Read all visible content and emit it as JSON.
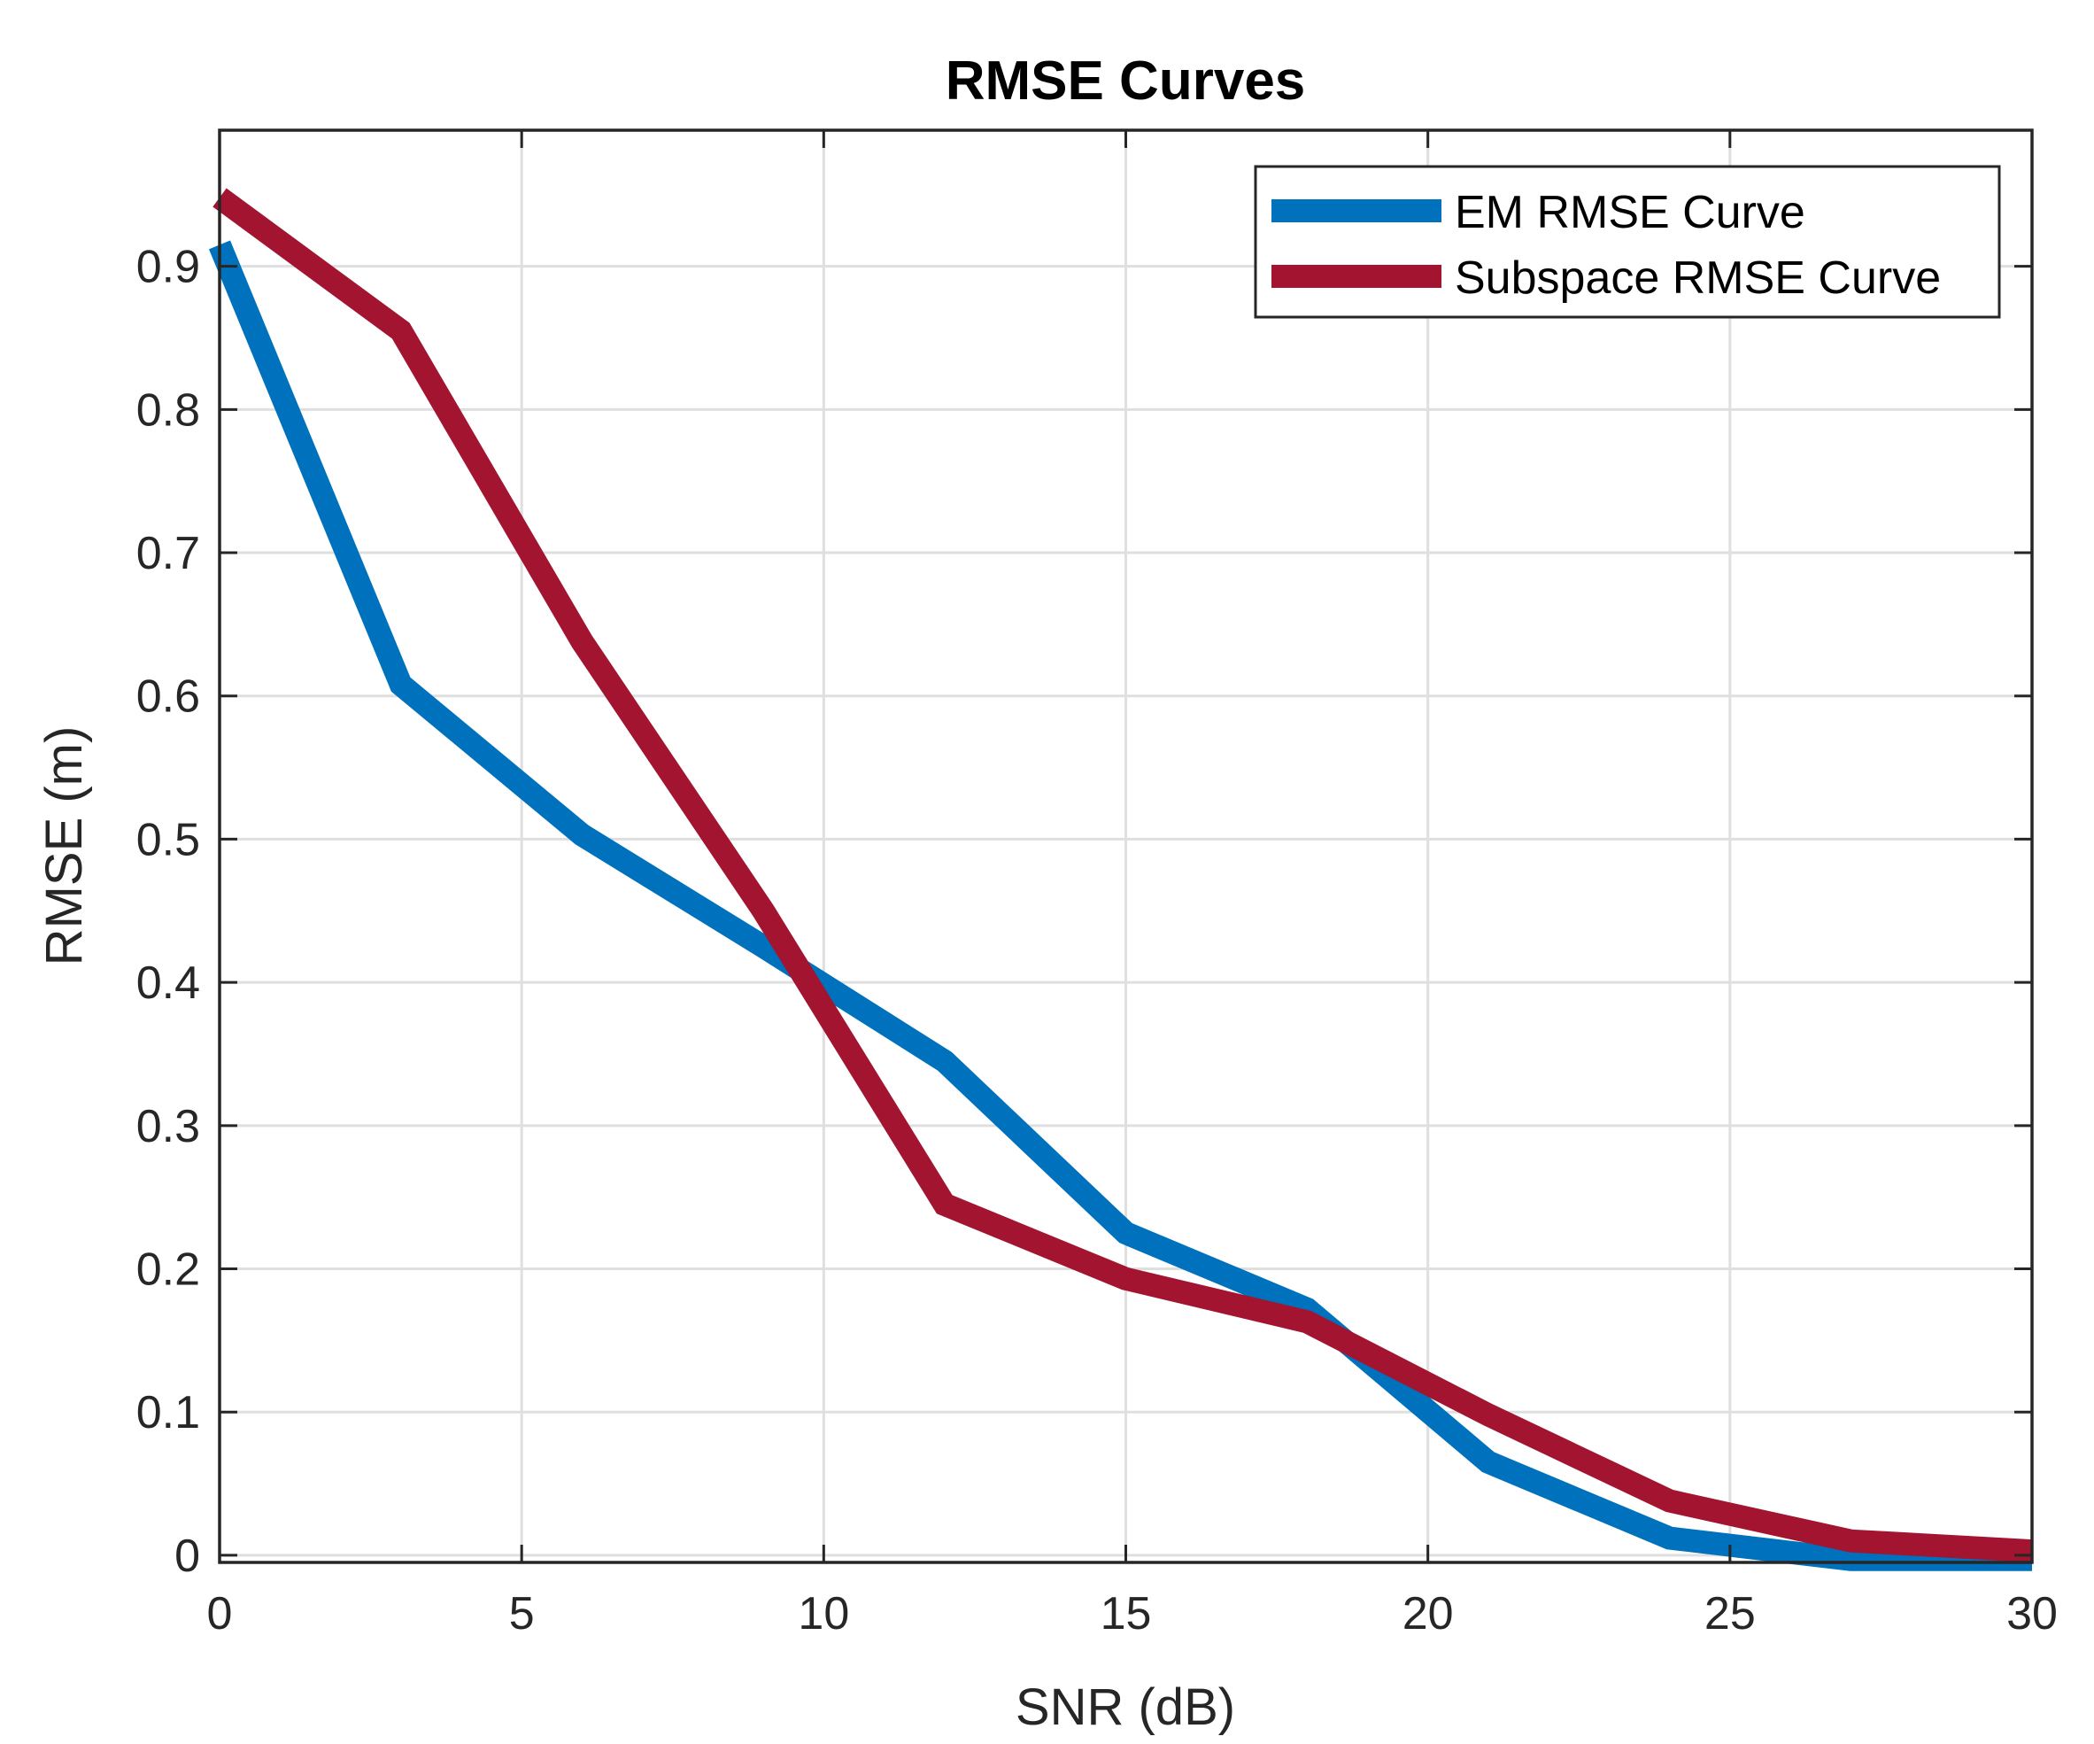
{
  "chart_data": {
    "type": "line",
    "title": "RMSE Curves",
    "xlabel": "SNR (dB)",
    "ylabel": "RMSE (m)",
    "xlim": [
      0,
      30
    ],
    "ylim": [
      -0.005,
      0.995
    ],
    "xticks": [
      0,
      5,
      10,
      15,
      20,
      25,
      30
    ],
    "xtick_labels": [
      "0",
      "5",
      "10",
      "15",
      "20",
      "25",
      "30"
    ],
    "yticks": [
      0,
      0.1,
      0.2,
      0.3,
      0.4,
      0.5,
      0.6,
      0.7,
      0.8,
      0.9
    ],
    "ytick_labels": [
      "0",
      "0.1",
      "0.2",
      "0.3",
      "0.4",
      "0.5",
      "0.6",
      "0.7",
      "0.8",
      "0.9"
    ],
    "grid": true,
    "legend_position": "top-right",
    "x": [
      0,
      3,
      6,
      9,
      12,
      15,
      18,
      21,
      24,
      27,
      30
    ],
    "series": [
      {
        "name": "EM RMSE Curve",
        "color": "#0072bd",
        "values": [
          0.915,
          0.608,
          0.503,
          0.425,
          0.345,
          0.225,
          0.172,
          0.065,
          0.012,
          -0.003,
          -0.003
        ]
      },
      {
        "name": "Subspace RMSE Curve",
        "color": "#a2142f",
        "values": [
          0.948,
          0.855,
          0.638,
          0.45,
          0.245,
          0.193,
          0.163,
          0.098,
          0.038,
          0.01,
          0.003
        ]
      }
    ]
  }
}
